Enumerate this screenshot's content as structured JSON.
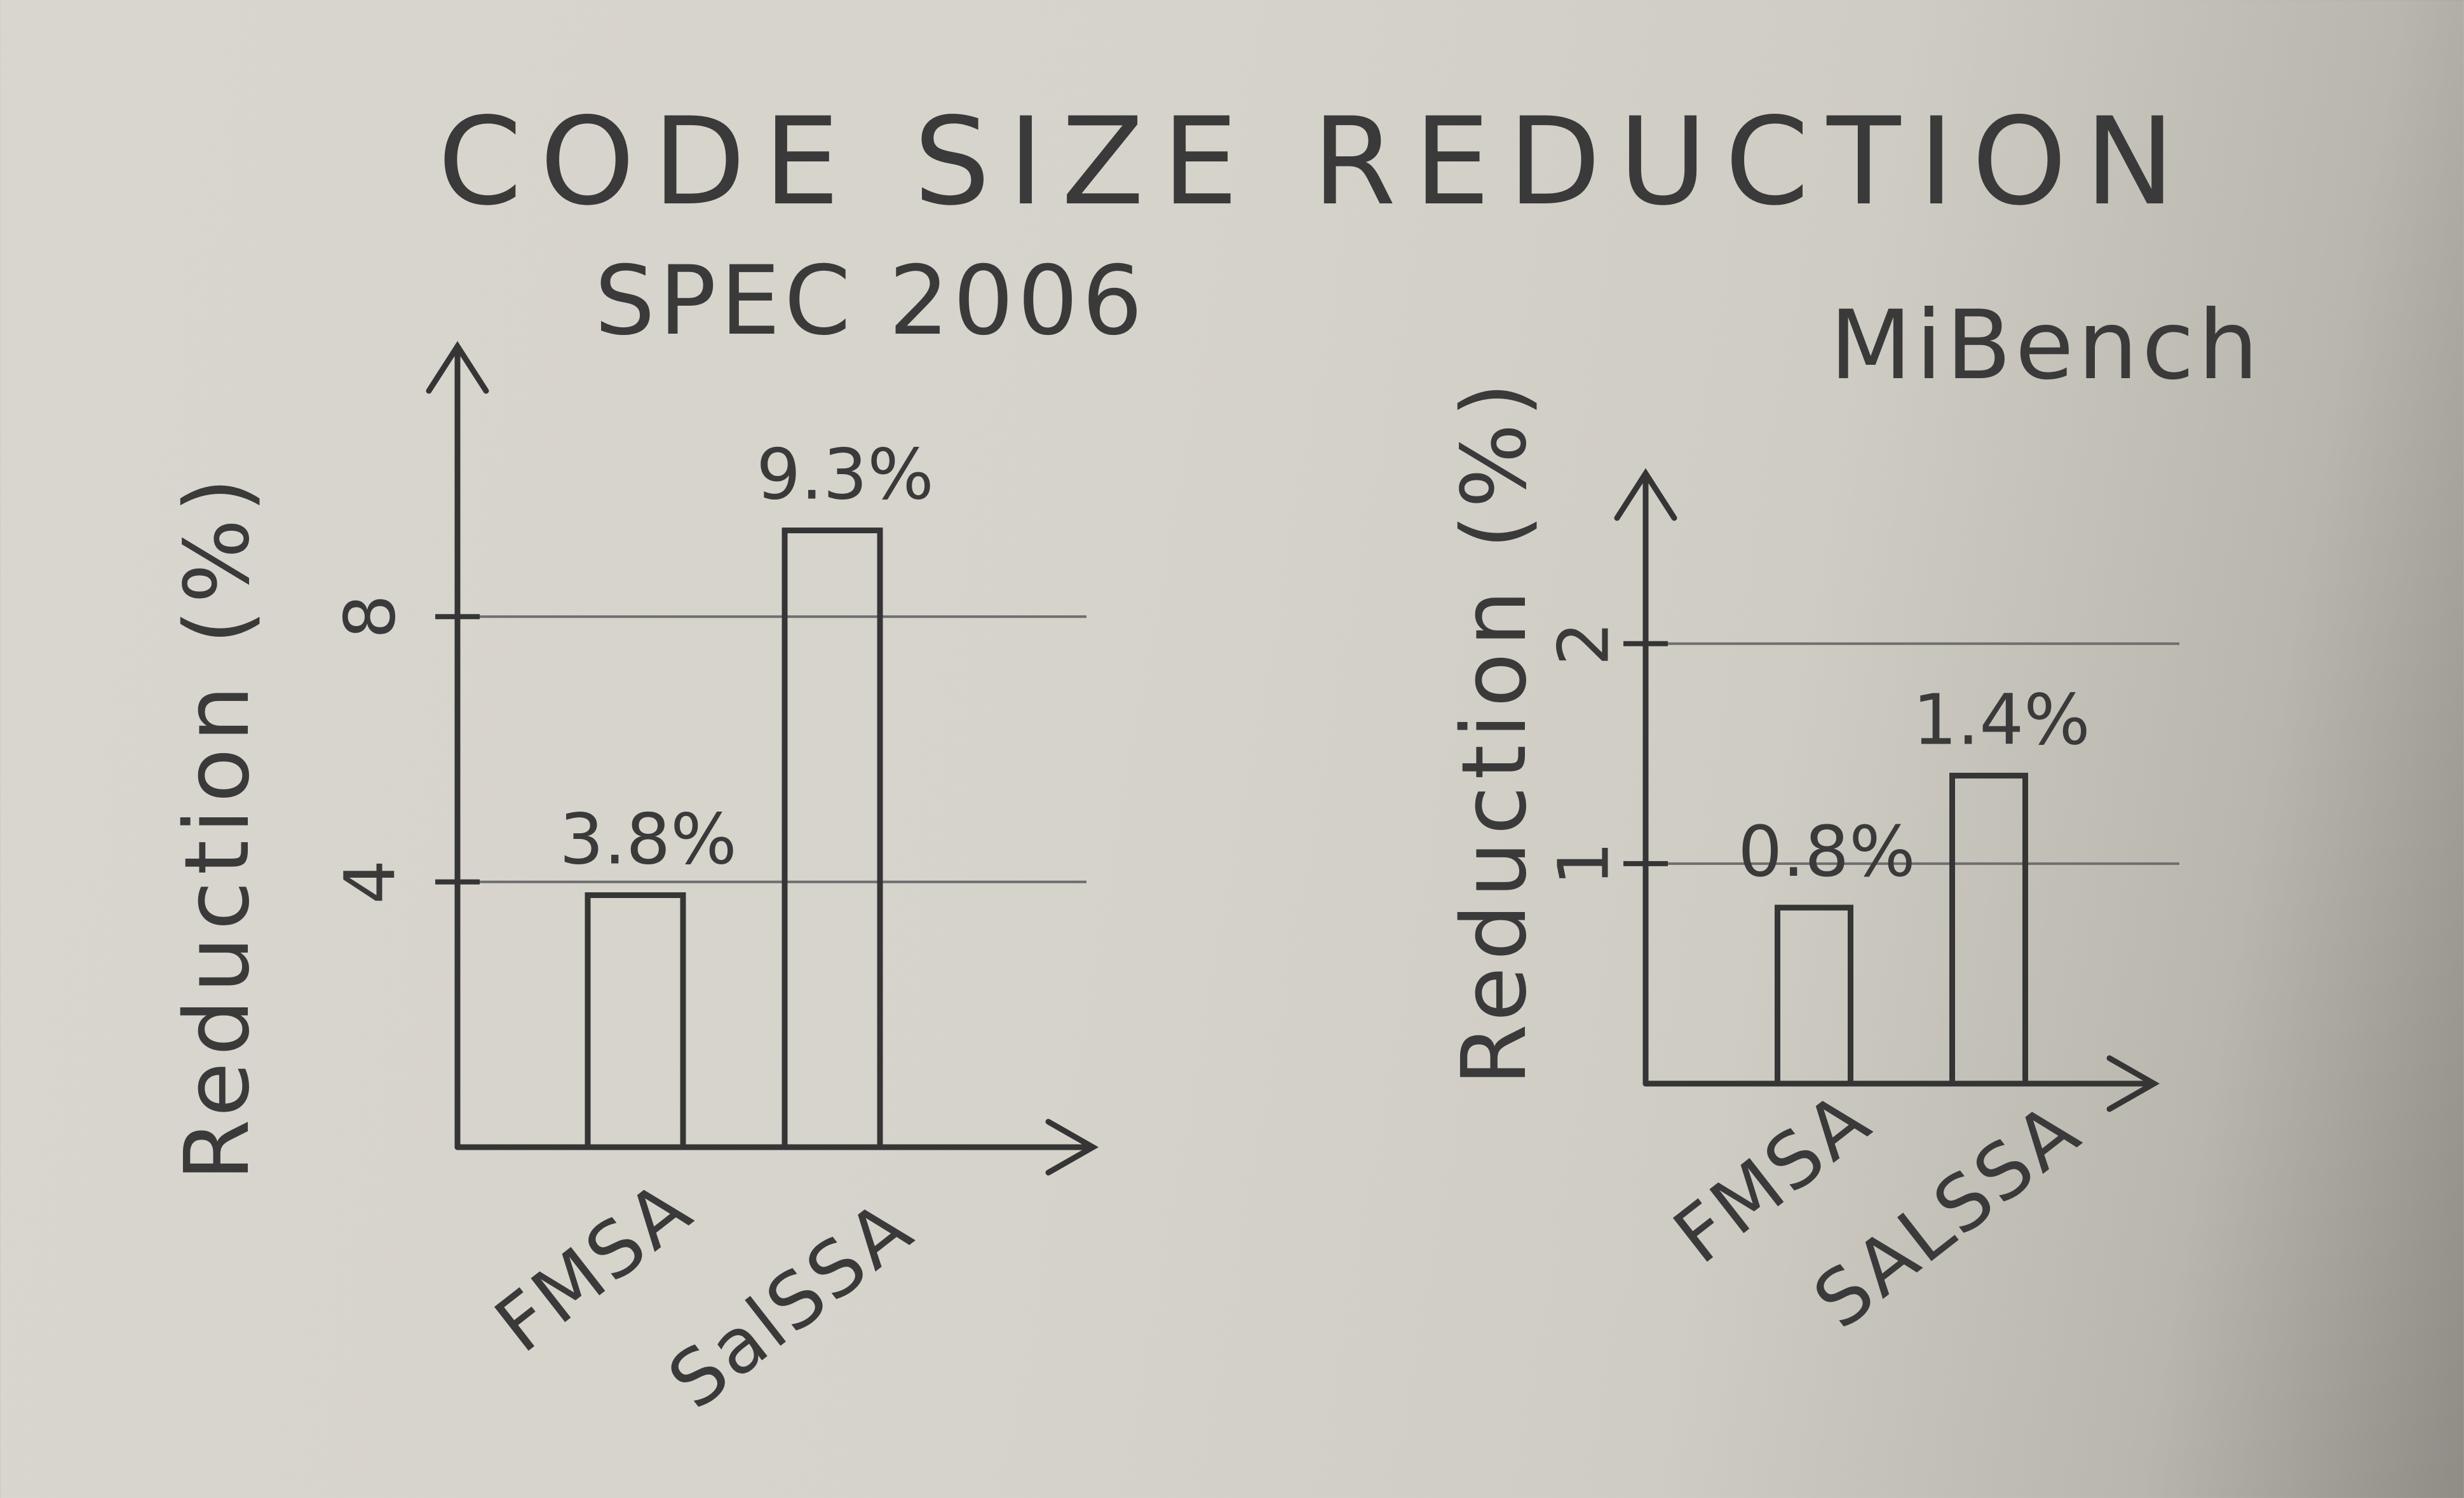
{
  "title": "CODE SIZE REDUCTION",
  "chart_data": [
    {
      "type": "bar",
      "title": "SPEC 2006",
      "ylabel": "Reduction (%)",
      "categories": [
        "FMSA",
        "SalSSA"
      ],
      "values": [
        3.8,
        9.3
      ],
      "value_labels": [
        "3.8%",
        "9.3%"
      ],
      "yticks": [
        4,
        8
      ],
      "ylim": [
        0,
        11.5
      ],
      "grid": true
    },
    {
      "type": "bar",
      "title": "MiBench",
      "ylabel": "Reduction (%)",
      "categories": [
        "FMSA",
        "SALSSA"
      ],
      "values": [
        0.8,
        1.4
      ],
      "value_labels": [
        "0.8%",
        "1.4%"
      ],
      "yticks": [
        1,
        2
      ],
      "ylim": [
        0,
        2.6
      ],
      "grid": true
    }
  ]
}
